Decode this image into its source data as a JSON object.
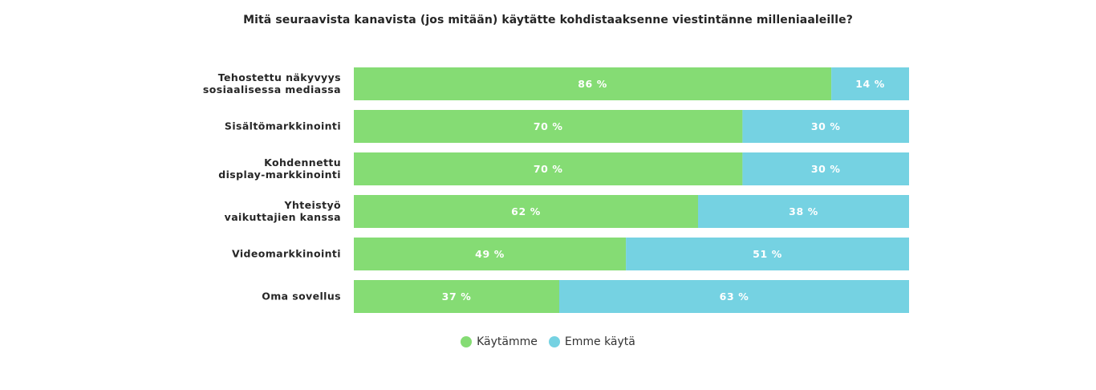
{
  "colors": {
    "used": "#85dc74",
    "not_used": "#75d2e2"
  },
  "chart_data": {
    "type": "bar",
    "orientation": "horizontal",
    "stacked": true,
    "title": "Mitä seuraavista kanavista (jos mitään) käytätte kohdistaaksenne viestintänne milleniaaleille?",
    "categories": [
      [
        "Tehostettu näkyvyys",
        "sosiaalisessa mediassa"
      ],
      [
        "Sisältömarkkinointi"
      ],
      [
        "Kohdennettu",
        "display-markkinointi"
      ],
      [
        "Yhteistyö",
        "vaikuttajien kanssa"
      ],
      [
        "Videomarkkinointi"
      ],
      [
        "Oma sovellus"
      ]
    ],
    "series": [
      {
        "name": "Käytämme",
        "values": [
          86,
          70,
          70,
          62,
          49,
          37
        ],
        "labels": [
          "86 %",
          "70 %",
          "70 %",
          "62 %",
          "49 %",
          "37 %"
        ]
      },
      {
        "name": "Emme käytä",
        "values": [
          14,
          30,
          30,
          38,
          51,
          63
        ],
        "labels": [
          "14 %",
          "30 %",
          "30 %",
          "38 %",
          "51 %",
          "63 %"
        ]
      }
    ],
    "xlim": [
      0,
      100
    ],
    "legend_position": "bottom-center",
    "grid": false
  }
}
